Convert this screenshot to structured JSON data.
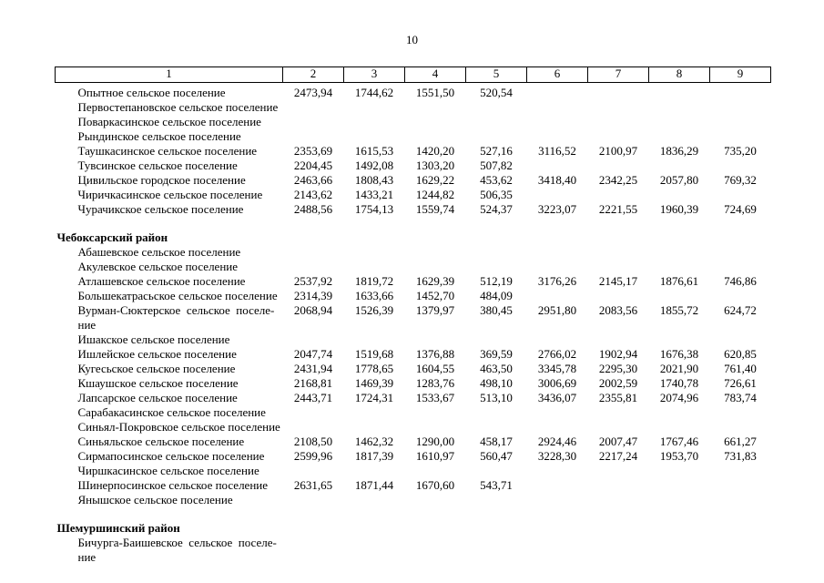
{
  "page": {
    "number": "10"
  },
  "table": {
    "header": [
      "1",
      "2",
      "3",
      "4",
      "5",
      "6",
      "7",
      "8",
      "9"
    ],
    "sections": [
      {
        "title": "",
        "rows": [
          {
            "name": "Опытное сельское поселение",
            "values": [
              "2473,94",
              "1744,62",
              "1551,50",
              "520,54",
              "",
              "",
              "",
              ""
            ]
          },
          {
            "name": "Первостепановское сельское поселение",
            "values": [
              "",
              "",
              "",
              "",
              "",
              "",
              "",
              ""
            ]
          },
          {
            "name": "Поваркасинское сельское поселение",
            "values": [
              "",
              "",
              "",
              "",
              "",
              "",
              "",
              ""
            ]
          },
          {
            "name": "Рындинское сельское поселение",
            "values": [
              "",
              "",
              "",
              "",
              "",
              "",
              "",
              ""
            ]
          },
          {
            "name": "Таушкасинское сельское поселение",
            "values": [
              "2353,69",
              "1615,53",
              "1420,20",
              "527,16",
              "3116,52",
              "2100,97",
              "1836,29",
              "735,20"
            ]
          },
          {
            "name": "Тувсинское сельское поселение",
            "values": [
              "2204,45",
              "1492,08",
              "1303,20",
              "507,82",
              "",
              "",
              "",
              ""
            ]
          },
          {
            "name": "Цивильское городское поселение",
            "values": [
              "2463,66",
              "1808,43",
              "1629,22",
              "453,62",
              "3418,40",
              "2342,25",
              "2057,80",
              "769,32"
            ]
          },
          {
            "name": "Чиричкасинское сельское поселение",
            "values": [
              "2143,62",
              "1433,21",
              "1244,82",
              "506,35",
              "",
              "",
              "",
              ""
            ]
          },
          {
            "name": "Чурачикское сельское поселение",
            "values": [
              "2488,56",
              "1754,13",
              "1559,74",
              "524,37",
              "3223,07",
              "2221,55",
              "1960,39",
              "724,69"
            ]
          }
        ]
      },
      {
        "title": "Чебоксарский район",
        "rows": [
          {
            "name": "Абашевское сельское поселение",
            "values": [
              "",
              "",
              "",
              "",
              "",
              "",
              "",
              ""
            ]
          },
          {
            "name": "Акулевское сельское поселение",
            "values": [
              "",
              "",
              "",
              "",
              "",
              "",
              "",
              ""
            ]
          },
          {
            "name": "Атлашевское сельское поселение",
            "values": [
              "2537,92",
              "1819,72",
              "1629,39",
              "512,19",
              "3176,26",
              "2145,17",
              "1876,61",
              "746,86"
            ]
          },
          {
            "name": "Большекатрасьское сельское поселение",
            "values": [
              "2314,39",
              "1633,66",
              "1452,70",
              "484,09",
              "",
              "",
              "",
              ""
            ]
          },
          {
            "name": "Вурман-Сюктерское  сельское  поселе-\nние",
            "values": [
              "2068,94",
              "1526,39",
              "1379,97",
              "380,45",
              "2951,80",
              "2083,56",
              "1855,72",
              "624,72"
            ]
          },
          {
            "name": "Ишакское сельское поселение",
            "values": [
              "",
              "",
              "",
              "",
              "",
              "",
              "",
              ""
            ]
          },
          {
            "name": "Ишлейское сельское поселение",
            "values": [
              "2047,74",
              "1519,68",
              "1376,88",
              "369,59",
              "2766,02",
              "1902,94",
              "1676,38",
              "620,85"
            ]
          },
          {
            "name": "Кугесьское сельское поселение",
            "values": [
              "2431,94",
              "1778,65",
              "1604,55",
              "463,50",
              "3345,78",
              "2295,30",
              "2021,90",
              "761,40"
            ]
          },
          {
            "name": "Кшаушское сельское поселение",
            "values": [
              "2168,81",
              "1469,39",
              "1283,76",
              "498,10",
              "3006,69",
              "2002,59",
              "1740,78",
              "726,61"
            ]
          },
          {
            "name": "Лапсарское сельское поселение",
            "values": [
              "2443,71",
              "1724,31",
              "1533,67",
              "513,10",
              "3436,07",
              "2355,81",
              "2074,96",
              "783,74"
            ]
          },
          {
            "name": "Сарабакасинское сельское поселение",
            "values": [
              "",
              "",
              "",
              "",
              "",
              "",
              "",
              ""
            ]
          },
          {
            "name": "Синьял-Покровское сельское поселение",
            "values": [
              "",
              "",
              "",
              "",
              "",
              "",
              "",
              ""
            ]
          },
          {
            "name": "Синьяльское сельское поселение",
            "values": [
              "2108,50",
              "1462,32",
              "1290,00",
              "458,17",
              "2924,46",
              "2007,47",
              "1767,46",
              "661,27"
            ]
          },
          {
            "name": "Сирмапосинское сельское поселение",
            "values": [
              "2599,96",
              "1817,39",
              "1610,97",
              "560,47",
              "3228,30",
              "2217,24",
              "1953,70",
              "731,83"
            ]
          },
          {
            "name": "Чиршкасинское сельское поселение",
            "values": [
              "",
              "",
              "",
              "",
              "",
              "",
              "",
              ""
            ]
          },
          {
            "name": "Шинерпосинское сельское поселение",
            "values": [
              "2631,65",
              "1871,44",
              "1670,60",
              "543,71",
              "",
              "",
              "",
              ""
            ]
          },
          {
            "name": "Янышское сельское поселение",
            "values": [
              "",
              "",
              "",
              "",
              "",
              "",
              "",
              ""
            ]
          }
        ]
      },
      {
        "title": "Шемуршинский район",
        "rows": [
          {
            "name": "Бичурга-Баишевское  сельское  поселе-\nние",
            "values": [
              "",
              "",
              "",
              "",
              "",
              "",
              "",
              ""
            ]
          }
        ]
      }
    ]
  }
}
